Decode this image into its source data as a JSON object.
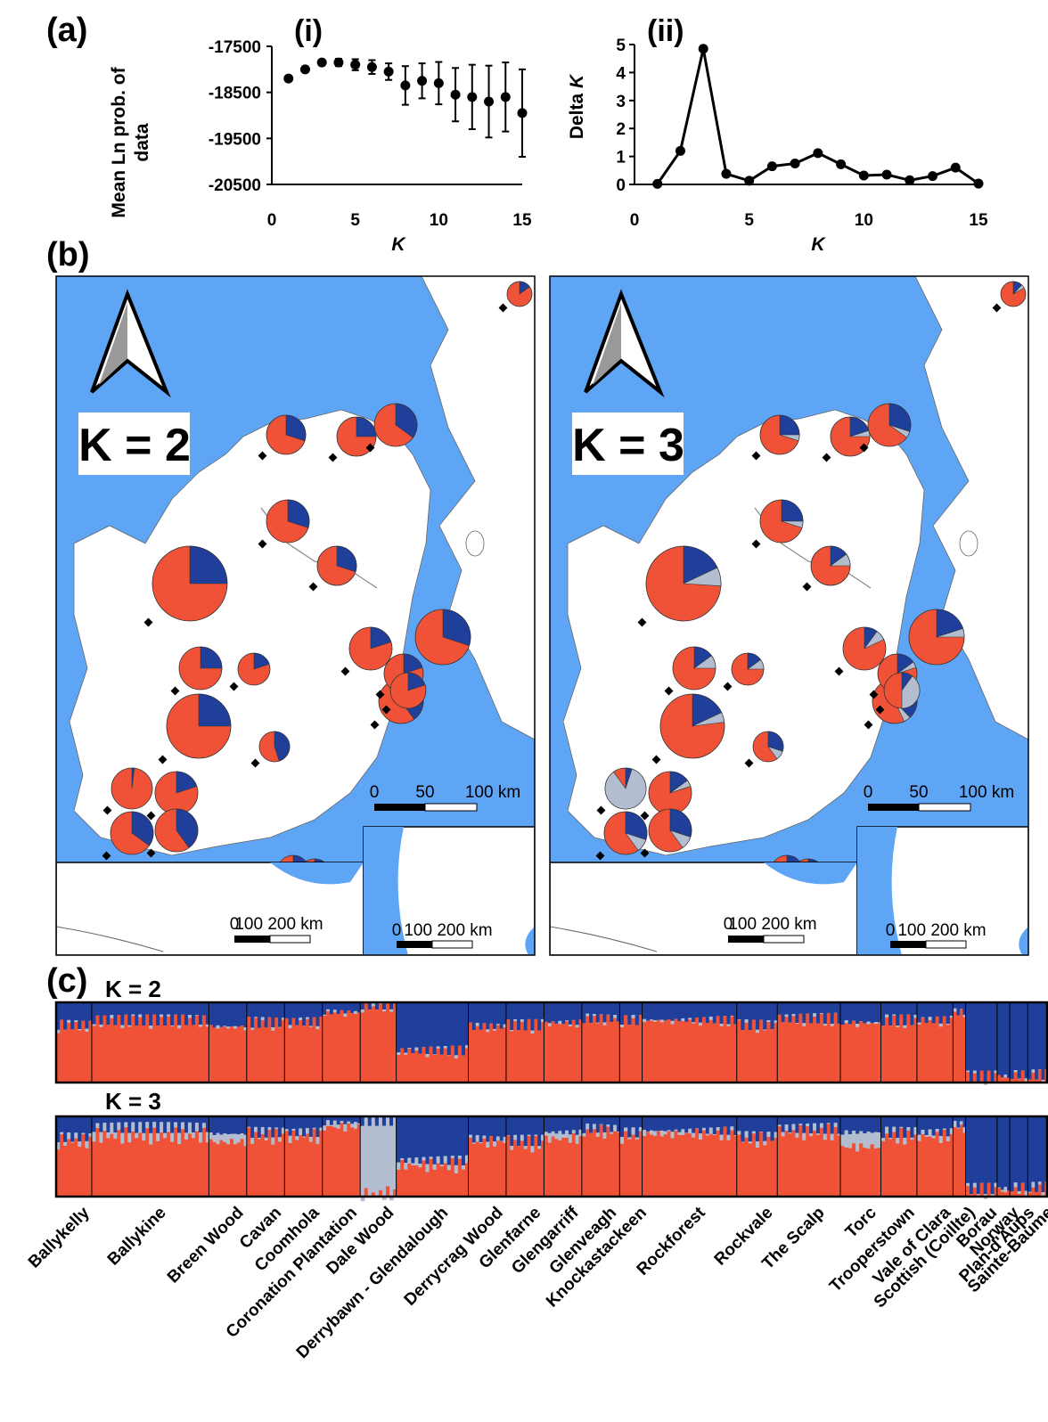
{
  "panels": {
    "a": "(a)",
    "b": "(b)",
    "c": "(c)",
    "i": "(i)",
    "ii": "(ii)"
  },
  "colors": {
    "red": "#ef5236",
    "blue": "#1f3f9a",
    "grey": "#b3bdd0",
    "sea": "#5fa5f5"
  },
  "chart_data": [
    {
      "type": "scatter",
      "title": "(i)",
      "xlabel": "K",
      "ylabel": "Mean Ln prob. of data",
      "xlim": [
        0,
        15
      ],
      "ylim": [
        -20500,
        -17500
      ],
      "xticks": [
        0,
        5,
        10,
        15
      ],
      "yticks": [
        -17500,
        -18500,
        -19500,
        -20500
      ],
      "x": [
        1,
        2,
        3,
        4,
        5,
        6,
        7,
        8,
        9,
        10,
        11,
        12,
        13,
        14,
        15
      ],
      "y": [
        -18200,
        -18000,
        -17850,
        -17850,
        -17900,
        -17950,
        -18050,
        -18350,
        -18250,
        -18300,
        -18550,
        -18600,
        -18700,
        -18600,
        -18950
      ],
      "err": [
        20,
        60,
        60,
        80,
        120,
        150,
        180,
        420,
        380,
        460,
        580,
        700,
        780,
        750,
        950
      ]
    },
    {
      "type": "line",
      "title": "(ii)",
      "xlabel": "K",
      "ylabel": "Delta K",
      "xlim": [
        0,
        15
      ],
      "ylim": [
        0,
        5
      ],
      "xticks": [
        0,
        5,
        10,
        15
      ],
      "yticks": [
        0,
        1,
        2,
        3,
        4,
        5
      ],
      "x": [
        1,
        2,
        3,
        4,
        5,
        6,
        7,
        8,
        9,
        10,
        11,
        12,
        13,
        14,
        15
      ],
      "y": [
        0.02,
        1.2,
        4.85,
        0.38,
        0.13,
        0.65,
        0.75,
        1.12,
        0.72,
        0.32,
        0.35,
        0.15,
        0.3,
        0.6,
        0.03
      ]
    },
    {
      "type": "bar",
      "title": "K = 2",
      "populations": [
        "Ballykelly",
        "Ballykine",
        "Breen Wood",
        "Cavan",
        "Coomhola",
        "Coronation Plantation",
        "Dale Wood",
        "Derrybawn - Glendalough",
        "Derrycrag Wood",
        "Glenfarne",
        "Glengarriff",
        "Glenveagh",
        "Knockastackeen",
        "Rockforest",
        "Rockvale",
        "The Scalp",
        "Torc",
        "Trooperstown",
        "Vale of Clara",
        "Scottish (Coillte)",
        "Borau",
        "Norway",
        "Plan-d'Aups",
        "Sainte-Baume"
      ],
      "blue_fraction": [
        0.28,
        0.22,
        0.3,
        0.25,
        0.24,
        0.12,
        0.02,
        0.6,
        0.3,
        0.28,
        0.25,
        0.2,
        0.22,
        0.22,
        0.28,
        0.2,
        0.25,
        0.22,
        0.22,
        0.12,
        0.92,
        0.92,
        0.9,
        0.9
      ]
    },
    {
      "type": "bar",
      "title": "K = 3",
      "populations": [
        "Ballykelly",
        "Ballykine",
        "Breen Wood",
        "Cavan",
        "Coomhola",
        "Coronation Plantation",
        "Dale Wood",
        "Derrybawn - Glendalough",
        "Derrycrag Wood",
        "Glenfarne",
        "Glengarriff",
        "Glenveagh",
        "Knockastackeen",
        "Rockforest",
        "Rockvale",
        "The Scalp",
        "Torc",
        "Trooperstown",
        "Vale of Clara",
        "Scottish (Coillte)",
        "Borau",
        "Norway",
        "Plan-d'Aups",
        "Sainte-Baume"
      ],
      "blue_fraction": [
        0.26,
        0.14,
        0.22,
        0.2,
        0.2,
        0.08,
        0.05,
        0.55,
        0.28,
        0.3,
        0.2,
        0.15,
        0.2,
        0.18,
        0.25,
        0.15,
        0.2,
        0.2,
        0.2,
        0.1,
        0.9,
        0.9,
        0.88,
        0.88
      ],
      "grey_fraction": [
        0.05,
        0.1,
        0.1,
        0.05,
        0.05,
        0.05,
        0.9,
        0.06,
        0.04,
        0.04,
        0.08,
        0.04,
        0.05,
        0.04,
        0.04,
        0.05,
        0.18,
        0.05,
        0.05,
        0.04,
        0.02,
        0.03,
        0.03,
        0.03
      ]
    }
  ],
  "maps": [
    {
      "k_label": "K = 2",
      "scale_main": [
        "0",
        "50",
        "100 km"
      ],
      "scale_inset_a": [
        "0",
        "100",
        "200 km"
      ],
      "scale_inset_b": [
        "0",
        "100",
        "200 km"
      ],
      "pies": [
        {
          "blue": 0.3,
          "grey": 0.0
        },
        {
          "blue": 0.25,
          "grey": 0.0
        },
        {
          "blue": 0.35,
          "grey": 0.0
        },
        {
          "blue": 0.3,
          "grey": 0.0
        },
        {
          "blue": 0.3,
          "grey": 0.0
        },
        {
          "blue": 0.25,
          "grey": 0.0
        },
        {
          "blue": 0.3,
          "grey": 0.0
        },
        {
          "blue": 0.2,
          "grey": 0.0
        },
        {
          "blue": 0.25,
          "grey": 0.0
        },
        {
          "blue": 0.2,
          "grey": 0.0
        },
        {
          "blue": 0.4,
          "grey": 0.0
        },
        {
          "blue": 0.2,
          "grey": 0.0
        },
        {
          "blue": 0.25,
          "grey": 0.0
        },
        {
          "blue": 0.45,
          "grey": 0.0
        },
        {
          "blue": 0.2,
          "grey": 0.0
        },
        {
          "blue": 0.02,
          "grey": 0.0
        },
        {
          "blue": 0.2,
          "grey": 0.0
        },
        {
          "blue": 0.35,
          "grey": 0.0
        },
        {
          "blue": 0.4,
          "grey": 0.0
        },
        {
          "blue": 0.85,
          "grey": 0.0
        },
        {
          "blue": 0.8,
          "grey": 0.0
        },
        {
          "blue": 0.9,
          "grey": 0.0
        },
        {
          "blue": 0.85,
          "grey": 0.0
        },
        {
          "blue": 0.15,
          "grey": 0.0
        }
      ]
    },
    {
      "k_label": "K = 3",
      "scale_main": [
        "0",
        "50",
        "100 km"
      ],
      "scale_inset_a": [
        "0",
        "100",
        "200 km"
      ],
      "scale_inset_b": [
        "0",
        "100",
        "200 km"
      ],
      "pies": [
        {
          "blue": 0.25,
          "grey": 0.05
        },
        {
          "blue": 0.2,
          "grey": 0.05
        },
        {
          "blue": 0.3,
          "grey": 0.05
        },
        {
          "blue": 0.25,
          "grey": 0.05
        },
        {
          "blue": 0.15,
          "grey": 0.1
        },
        {
          "blue": 0.18,
          "grey": 0.08
        },
        {
          "blue": 0.2,
          "grey": 0.05
        },
        {
          "blue": 0.1,
          "grey": 0.08
        },
        {
          "blue": 0.15,
          "grey": 0.1
        },
        {
          "blue": 0.15,
          "grey": 0.1
        },
        {
          "blue": 0.38,
          "grey": 0.05
        },
        {
          "blue": 0.15,
          "grey": 0.05
        },
        {
          "blue": 0.18,
          "grey": 0.05
        },
        {
          "blue": 0.3,
          "grey": 0.1
        },
        {
          "blue": 0.15,
          "grey": 0.05
        },
        {
          "blue": 0.05,
          "grey": 0.85
        },
        {
          "blue": 0.1,
          "grey": 0.4
        },
        {
          "blue": 0.3,
          "grey": 0.1
        },
        {
          "blue": 0.3,
          "grey": 0.1
        },
        {
          "blue": 0.82,
          "grey": 0.03
        },
        {
          "blue": 0.8,
          "grey": 0.02
        },
        {
          "blue": 0.88,
          "grey": 0.02
        },
        {
          "blue": 0.85,
          "grey": 0.02
        },
        {
          "blue": 0.12,
          "grey": 0.05
        }
      ]
    }
  ]
}
